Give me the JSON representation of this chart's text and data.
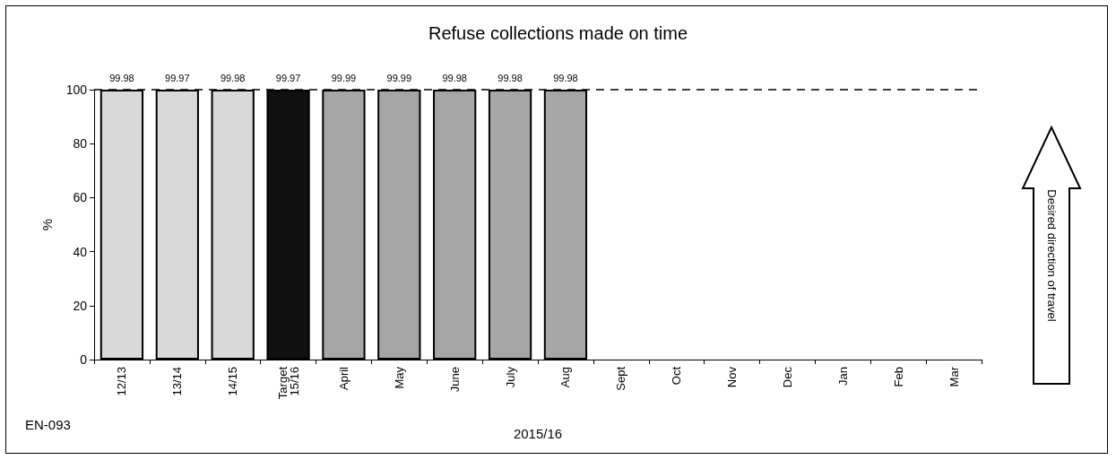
{
  "chart_data": {
    "type": "bar",
    "title": "Refuse collections made on time",
    "xlabel": "2015/16",
    "ylabel": "%",
    "annotations": [
      "EN-093",
      "Desired direction of travel"
    ],
    "categories": [
      "12/13",
      "13/14",
      "14/15",
      "Target 15/16",
      "April",
      "May",
      "June",
      "July",
      "Aug",
      "Sept",
      "Oct",
      "Nov",
      "Dec",
      "Jan",
      "Feb",
      "Mar"
    ],
    "ylim": [
      0,
      100
    ],
    "data_labels": true,
    "yticks": [
      0,
      20,
      40,
      60,
      80,
      100
    ],
    "series": [
      {
        "colors": [
          "#d9d9d9",
          "#d9d9d9",
          "#d9d9d9",
          "#111111",
          "#a6a6a6",
          "#a6a6a6",
          "#a6a6a6",
          "#a6a6a6",
          "#a6a6a6",
          null,
          null,
          null,
          null,
          null,
          null,
          null
        ],
        "values": [
          99.98,
          99.97,
          99.98,
          99.97,
          99.99,
          99.99,
          99.98,
          99.98,
          99.98,
          null,
          null,
          null,
          null,
          null,
          null,
          null
        ]
      }
    ],
    "ref_lines": [
      {
        "axis": "y",
        "value": 100,
        "color": "#000000",
        "line_style": "dashed"
      }
    ]
  }
}
